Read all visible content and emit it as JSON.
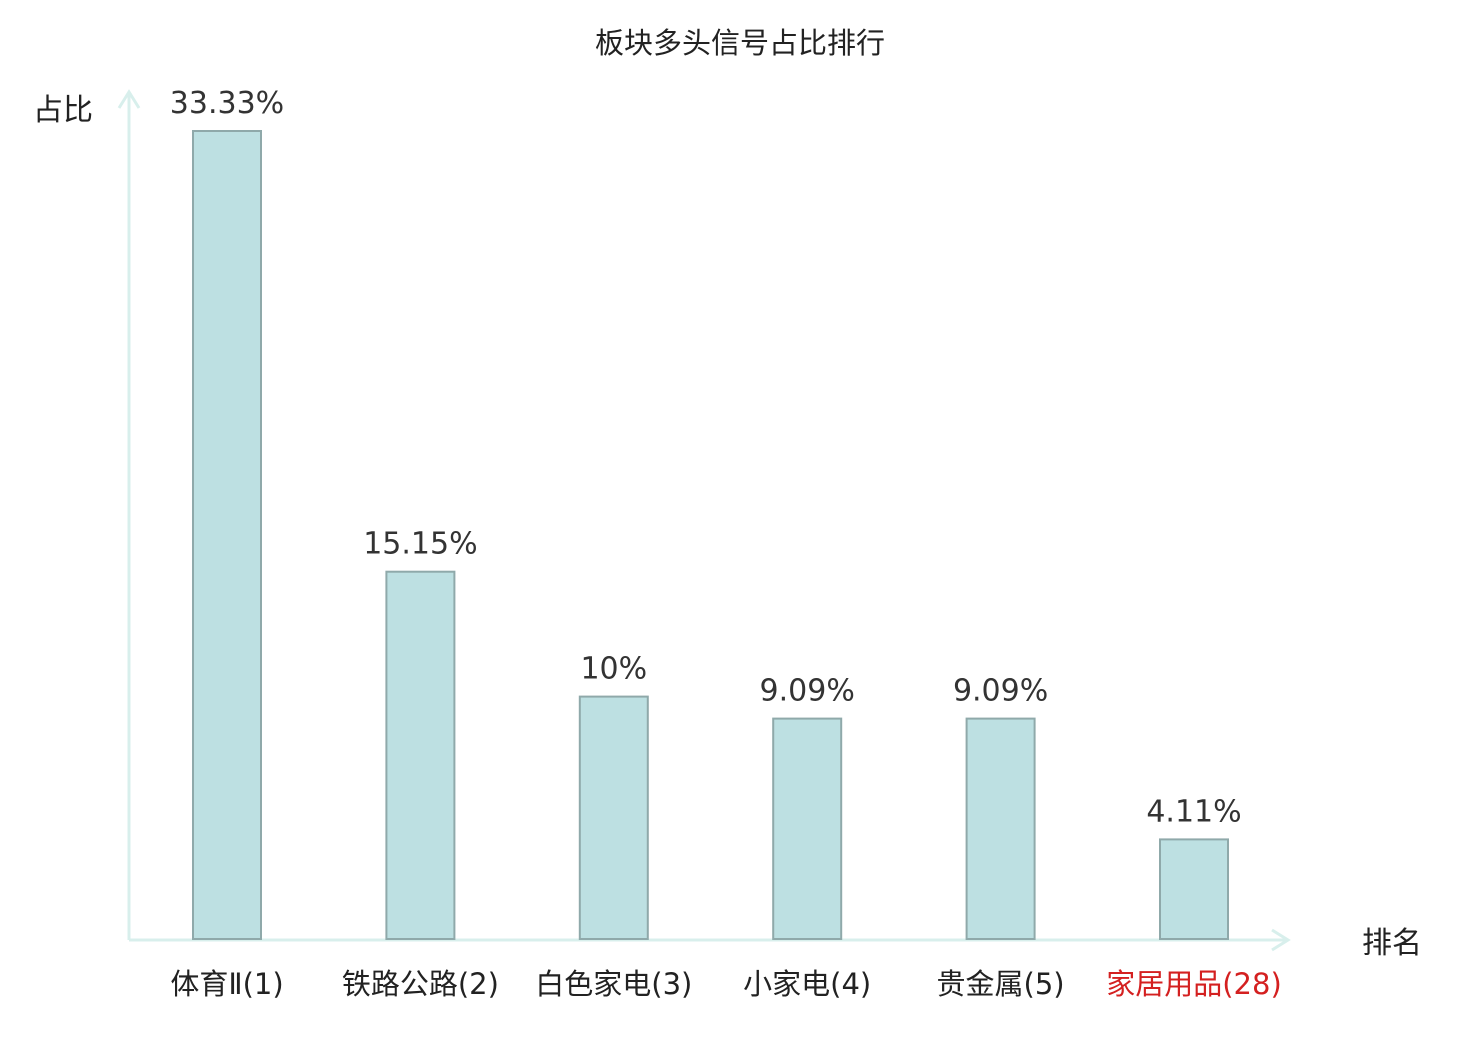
{
  "chart_data": {
    "type": "bar",
    "title": "板块多头信号占比排行",
    "ylabel": "占比",
    "xlabel": "排名",
    "categories": [
      {
        "name": "体育Ⅱ",
        "rank": "(1)",
        "highlight": false
      },
      {
        "name": "铁路公路",
        "rank": "(2)",
        "highlight": false
      },
      {
        "name": "白色家电",
        "rank": "(3)",
        "highlight": false
      },
      {
        "name": "小家电",
        "rank": "(4)",
        "highlight": false
      },
      {
        "name": "贵金属",
        "rank": "(5)",
        "highlight": false
      },
      {
        "name": "家居用品",
        "rank": "(28)",
        "highlight": true
      }
    ],
    "values": [
      33.33,
      15.15,
      10,
      9.09,
      9.09,
      4.11
    ],
    "value_labels": [
      "33.33%",
      "15.15%",
      "10%",
      "9.09%",
      "9.09%",
      "4.11%"
    ],
    "ylim": [
      0,
      33.33
    ],
    "grid": false,
    "legend": "none",
    "colors": {
      "bar_fill": "#bde0e2",
      "bar_stroke": "#8fa9aa",
      "axis": "#d8efec",
      "text": "#222222",
      "value_text": "#333333",
      "highlight": "#d42020"
    }
  }
}
